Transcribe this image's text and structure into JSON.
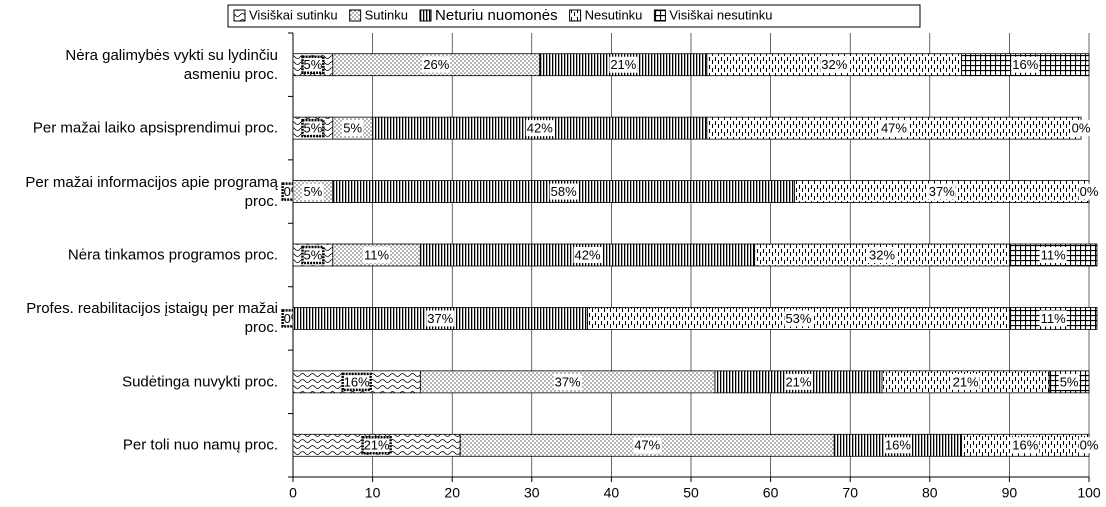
{
  "chart_data": {
    "type": "stacked_bar_horizontal",
    "categories": [
      "Nėra galimybės vykti su lydinčiu asmeniu proc.",
      "Per mažai laiko apsisprendimui proc.",
      "Per mažai informacijos apie programą proc.",
      "Nėra tinkamos programos proc.",
      "Profes. reabilitacijos įstaigų per mažai proc.",
      "Sudėtinga nuvykti proc.",
      "Per toli nuo namų proc."
    ],
    "series": [
      {
        "name": "Visiškai sutinku",
        "color": "#000000",
        "values": [
          5,
          5,
          0,
          5,
          0,
          16,
          21
        ],
        "value_labels": [
          "5%",
          "5%",
          "0%",
          "5%",
          "0%",
          "16%",
          "21%"
        ]
      },
      {
        "name": "Sutinku",
        "color": "#000000",
        "values": [
          26,
          5,
          5,
          11,
          null,
          37,
          47
        ],
        "value_labels": [
          "26%",
          "5%",
          "5%",
          "11%",
          null,
          "37%",
          "47%"
        ]
      },
      {
        "name": "Neturiu nuomonės",
        "color": "#000000",
        "values": [
          21,
          42,
          58,
          42,
          37,
          21,
          16
        ],
        "value_labels": [
          "21%",
          "42%",
          "58%",
          "42%",
          "37%",
          "21%",
          "16%"
        ]
      },
      {
        "name": "Nesutinku",
        "color": "#000000",
        "values": [
          32,
          47,
          37,
          32,
          53,
          21,
          16
        ],
        "value_labels": [
          "32%",
          "47%",
          "37%",
          "32%",
          "53%",
          "21%",
          "16%"
        ]
      },
      {
        "name": "Visiškai nesutinku",
        "color": "#000000",
        "values": [
          16,
          0,
          0,
          11,
          11,
          5,
          0
        ],
        "value_labels": [
          "16%",
          "0%",
          "0%",
          "11%",
          "11%",
          "5%",
          "0%"
        ]
      }
    ],
    "xlim": [
      0,
      100
    ],
    "xticks": [
      0,
      10,
      20,
      30,
      40,
      50,
      60,
      70,
      80,
      90,
      100
    ],
    "legend": "top"
  }
}
